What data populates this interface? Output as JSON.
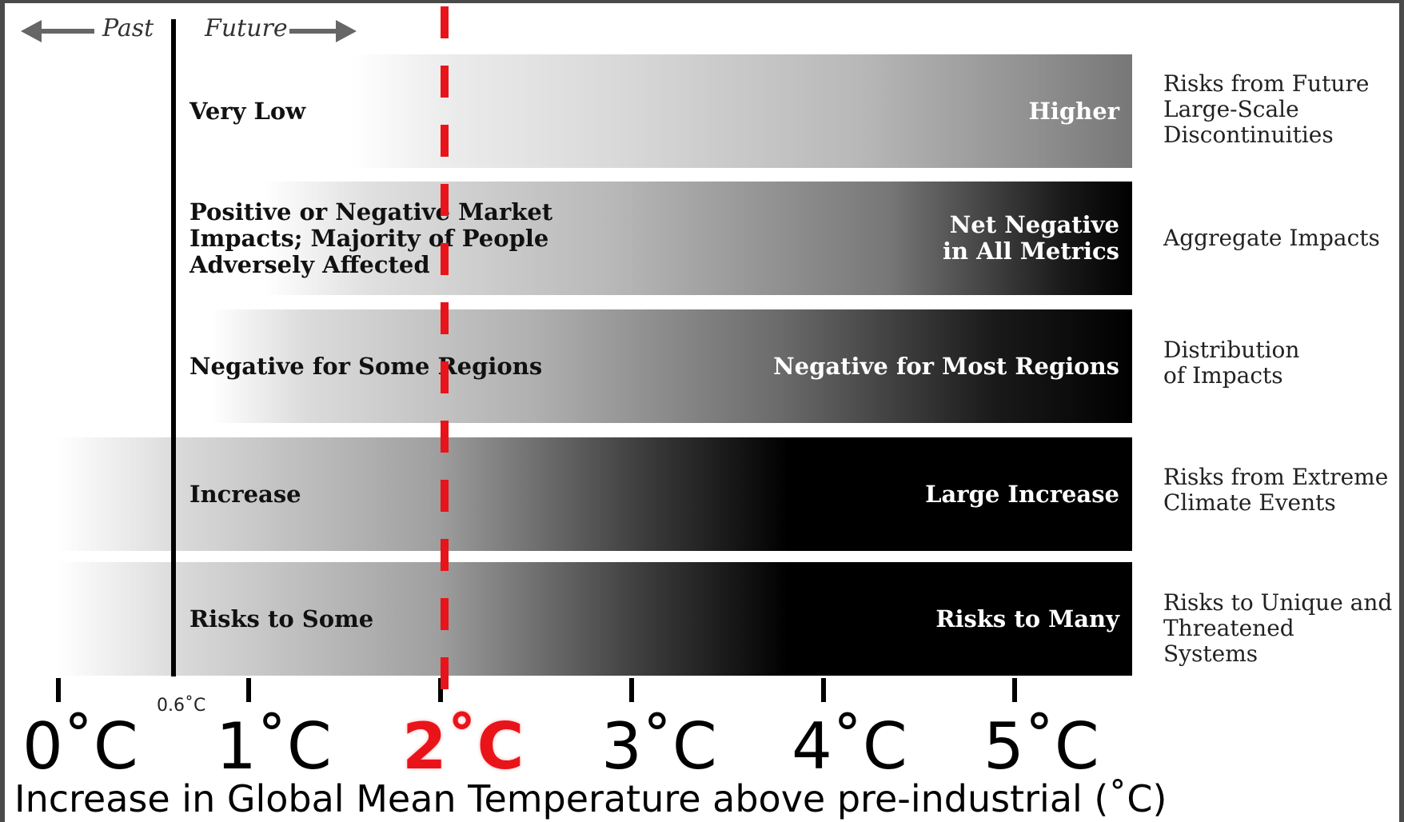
{
  "header": {
    "past_label": "Past",
    "future_label": "Future"
  },
  "rows": [
    {
      "left_text": "Very Low",
      "right_text": "Higher",
      "category": "Risks from Future Large-Scale Discontinuities"
    },
    {
      "left_text": "Positive or Negative Market Impacts; Majority of People Adversely Affected",
      "right_text": "Net Negative in All Metrics",
      "category": "Aggregate Impacts"
    },
    {
      "left_text": "Negative for Some Regions",
      "right_text": "Negative for Most Regions",
      "category": "Distribution of Impacts"
    },
    {
      "left_text": "Increase",
      "right_text": "Large Increase",
      "category": "Risks from Extreme Climate Events"
    },
    {
      "left_text": "Risks to Some",
      "right_text": "Risks to Many",
      "category": "Risks to Unique and Threatened Systems"
    }
  ],
  "axis": {
    "ticks": [
      "0˚C",
      "1˚C",
      "2˚C",
      "3˚C",
      "4˚C",
      "5˚C"
    ],
    "now_marker": "0.6˚C",
    "highlight_tick": "2˚C",
    "title": "Increase in Global Mean Temperature above pre-industrial (˚C)"
  },
  "colors": {
    "threshold": "#e8141a",
    "bands": "#000000",
    "background": "#ffffff"
  }
}
